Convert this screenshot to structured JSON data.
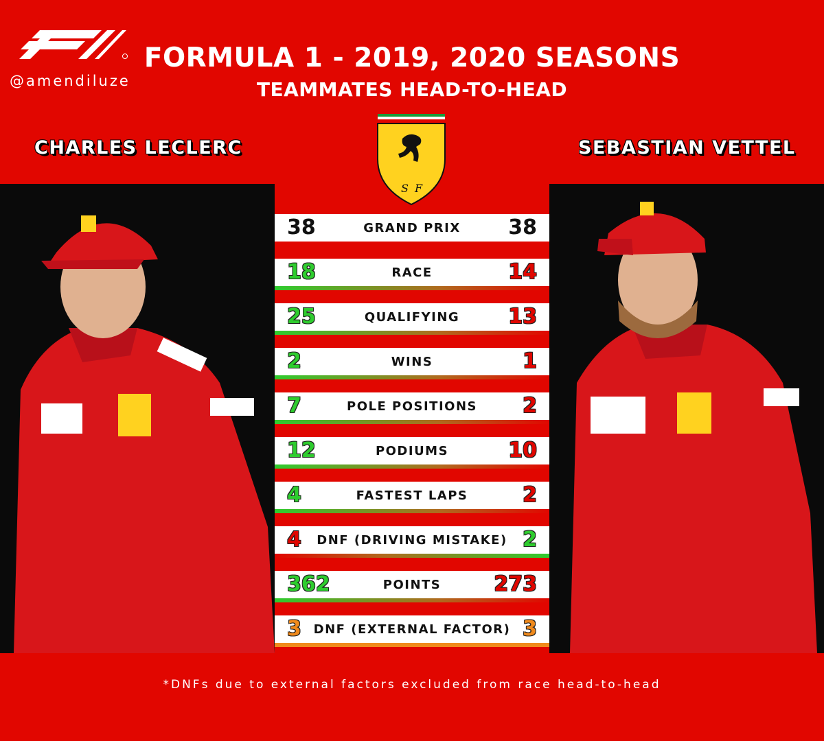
{
  "header": {
    "title": "FORMULA 1 - 2019, 2020 SEASONS",
    "subtitle": "TEAMMATES HEAD-TO-HEAD",
    "handle": "@amendiluze"
  },
  "drivers": {
    "left": "CHARLES LECLERC",
    "right": "SEBASTIAN VETTEL"
  },
  "colors": {
    "background": "#e10600",
    "green": "#2ecc2e",
    "red": "#e10600",
    "orange": "#f08a1c",
    "black": "#111111"
  },
  "stats": [
    {
      "label": "GRAND PRIX",
      "left": "38",
      "right": "38",
      "left_color": "black",
      "right_color": "black",
      "bar": "none"
    },
    {
      "label": "RACE",
      "left": "18",
      "right": "14",
      "left_color": "green",
      "right_color": "red",
      "bar": "left"
    },
    {
      "label": "QUALIFYING",
      "left": "25",
      "right": "13",
      "left_color": "green",
      "right_color": "red",
      "bar": "left"
    },
    {
      "label": "WINS",
      "left": "2",
      "right": "1",
      "left_color": "green",
      "right_color": "red",
      "bar": "left"
    },
    {
      "label": "POLE POSITIONS",
      "left": "7",
      "right": "2",
      "left_color": "green",
      "right_color": "red",
      "bar": "left"
    },
    {
      "label": "PODIUMS",
      "left": "12",
      "right": "10",
      "left_color": "green",
      "right_color": "red",
      "bar": "left"
    },
    {
      "label": "FASTEST LAPS",
      "left": "4",
      "right": "2",
      "left_color": "green",
      "right_color": "red",
      "bar": "left"
    },
    {
      "label": "DNF (DRIVING MISTAKE)",
      "left": "4",
      "right": "2",
      "left_color": "red",
      "right_color": "green",
      "bar": "right"
    },
    {
      "label": "POINTS",
      "left": "362",
      "right": "273",
      "left_color": "green",
      "right_color": "red",
      "bar": "left"
    },
    {
      "label": "DNF (EXTERNAL FACTOR)",
      "left": "3",
      "right": "3",
      "left_color": "orange",
      "right_color": "orange",
      "bar": "orange"
    }
  ],
  "footnote": "*DNFs due to external factors excluded from race head-to-head"
}
